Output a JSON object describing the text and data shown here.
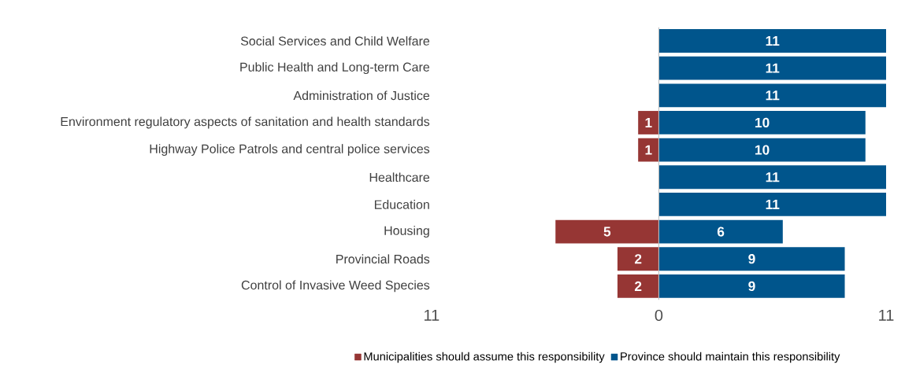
{
  "chart_data": {
    "type": "bar",
    "orientation": "horizontal",
    "categories": [
      "Social Services and Child Welfare",
      "Public Health and Long-term Care",
      "Administration of Justice",
      "Environment regulatory aspects of sanitation and health standards",
      "Highway Police Patrols and central police services",
      "Healthcare",
      "Education",
      "Housing",
      "Provincial Roads",
      "Control of Invasive Weed Species"
    ],
    "series": [
      {
        "name": "Municipalities should assume this responsibility",
        "color": "#963634",
        "values": [
          null,
          null,
          null,
          1,
          1,
          null,
          null,
          5,
          2,
          2
        ],
        "base": [
          null,
          null,
          null,
          -1,
          -1,
          null,
          null,
          -5,
          -2,
          -2
        ]
      },
      {
        "name": "Province should maintain this responsibility",
        "color": "#00558c",
        "values": [
          11,
          11,
          11,
          10,
          10,
          11,
          11,
          6,
          9,
          9
        ]
      }
    ],
    "data_labels": true,
    "xlim": [
      -11,
      11
    ],
    "xticks": [
      {
        "value": -11,
        "label": "11"
      },
      0,
      11
    ],
    "legend": "bottom"
  }
}
